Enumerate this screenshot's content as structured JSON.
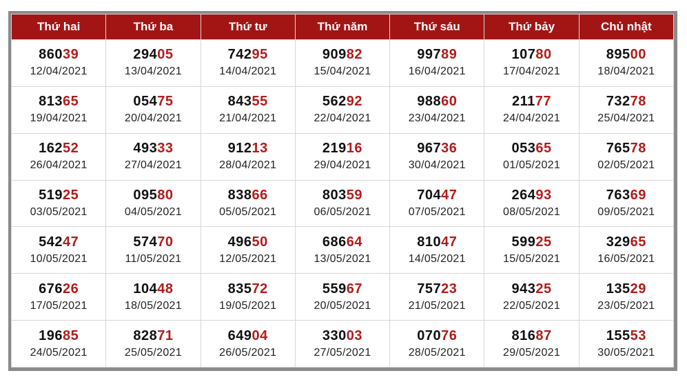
{
  "headers": [
    "Thứ hai",
    "Thứ ba",
    "Thứ tư",
    "Thứ năm",
    "Thứ sáu",
    "Thứ bảy",
    "Chủ nhật"
  ],
  "highlight_colors": {
    "gold": "#ffbf00",
    "pale": "#ffeaa5",
    "weekend": "#e2f1df",
    "header": "#a31515",
    "last_digits": "#b31b1b"
  },
  "rows": [
    [
      {
        "num": "86039",
        "date": "12/04/2021"
      },
      {
        "num": "29405",
        "date": "13/04/2021"
      },
      {
        "num": "74295",
        "date": "14/04/2021"
      },
      {
        "num": "90982",
        "date": "15/04/2021"
      },
      {
        "num": "99789",
        "date": "16/04/2021",
        "hl": "gold"
      },
      {
        "num": "10780",
        "date": "17/04/2021"
      },
      {
        "num": "89500",
        "date": "18/04/2021"
      }
    ],
    [
      {
        "num": "81365",
        "date": "19/04/2021"
      },
      {
        "num": "05475",
        "date": "20/04/2021"
      },
      {
        "num": "84355",
        "date": "21/04/2021"
      },
      {
        "num": "56292",
        "date": "22/04/2021"
      },
      {
        "num": "98860",
        "date": "23/04/2021",
        "hl": "gold"
      },
      {
        "num": "21177",
        "date": "24/04/2021"
      },
      {
        "num": "73278",
        "date": "25/04/2021"
      }
    ],
    [
      {
        "num": "16252",
        "date": "26/04/2021"
      },
      {
        "num": "49333",
        "date": "27/04/2021"
      },
      {
        "num": "91213",
        "date": "28/04/2021"
      },
      {
        "num": "21916",
        "date": "29/04/2021"
      },
      {
        "num": "96736",
        "date": "30/04/2021",
        "hl": "gold"
      },
      {
        "num": "05365",
        "date": "01/05/2021"
      },
      {
        "num": "76578",
        "date": "02/05/2021"
      }
    ],
    [
      {
        "num": "51925",
        "date": "03/05/2021"
      },
      {
        "num": "09580",
        "date": "04/05/2021"
      },
      {
        "num": "83866",
        "date": "05/05/2021"
      },
      {
        "num": "80359",
        "date": "06/05/2021"
      },
      {
        "num": "70447",
        "date": "07/05/2021",
        "hl": "pale"
      },
      {
        "num": "26493",
        "date": "08/05/2021"
      },
      {
        "num": "76369",
        "date": "09/05/2021"
      }
    ],
    [
      {
        "num": "54247",
        "date": "10/05/2021",
        "hl": "gold"
      },
      {
        "num": "57470",
        "date": "11/05/2021"
      },
      {
        "num": "49650",
        "date": "12/05/2021"
      },
      {
        "num": "68664",
        "date": "13/05/2021"
      },
      {
        "num": "81047",
        "date": "14/05/2021"
      },
      {
        "num": "59925",
        "date": "15/05/2021"
      },
      {
        "num": "32965",
        "date": "16/05/2021"
      }
    ],
    [
      {
        "num": "67626",
        "date": "17/05/2021",
        "hl": "gold"
      },
      {
        "num": "10448",
        "date": "18/05/2021"
      },
      {
        "num": "83572",
        "date": "19/05/2021"
      },
      {
        "num": "55967",
        "date": "20/05/2021"
      },
      {
        "num": "75723",
        "date": "21/05/2021"
      },
      {
        "num": "94325",
        "date": "22/05/2021"
      },
      {
        "num": "13529",
        "date": "23/05/2021"
      }
    ],
    [
      {
        "num": "19685",
        "date": "24/05/2021",
        "hl": "gold"
      },
      {
        "num": "82871",
        "date": "25/05/2021"
      },
      {
        "num": "64904",
        "date": "26/05/2021"
      },
      {
        "num": "33003",
        "date": "27/05/2021"
      },
      {
        "num": "07076",
        "date": "28/05/2021"
      },
      {
        "num": "81687",
        "date": "29/05/2021"
      },
      {
        "num": "15553",
        "date": "30/05/2021"
      }
    ]
  ]
}
